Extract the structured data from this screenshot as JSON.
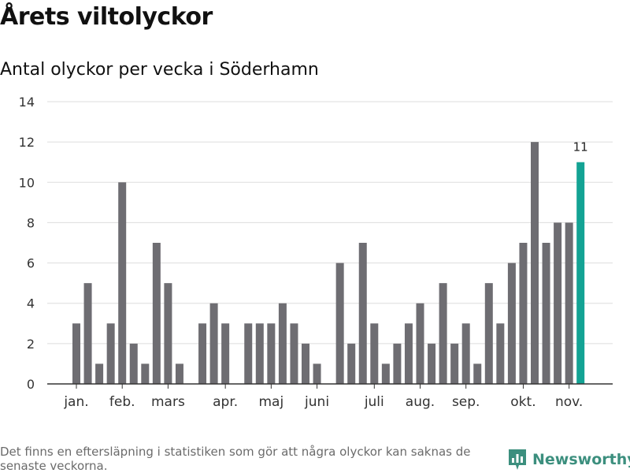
{
  "header": {
    "title": "Årets viltolyckor",
    "subtitle": "Antal olyckor per vecka i Söderhamn"
  },
  "footer": {
    "note": "Det finns en eftersläpning i statistiken som gör att några olyckor kan saknas de senaste veckorna.",
    "brand": "Newsworthy"
  },
  "colors": {
    "bar": "#6e6d72",
    "highlight": "#13a394",
    "grid": "#dddddd",
    "axis": "#333333",
    "brand": "#3c8f7e"
  },
  "chart_data": {
    "type": "bar",
    "title": "Antal olyckor per vecka i Söderhamn",
    "xlabel": "",
    "ylabel": "",
    "ylim": [
      0,
      14
    ],
    "yticks": [
      0,
      2,
      4,
      6,
      8,
      10,
      12,
      14
    ],
    "grid": true,
    "month_labels": [
      {
        "label": "jan.",
        "week": 3
      },
      {
        "label": "feb.",
        "week": 7
      },
      {
        "label": "mars",
        "week": 11
      },
      {
        "label": "apr.",
        "week": 16
      },
      {
        "label": "maj",
        "week": 20
      },
      {
        "label": "juni",
        "week": 24
      },
      {
        "label": "juli",
        "week": 29
      },
      {
        "label": "aug.",
        "week": 33
      },
      {
        "label": "sep.",
        "week": 37
      },
      {
        "label": "okt.",
        "week": 42
      },
      {
        "label": "nov.",
        "week": 46
      }
    ],
    "weeks": [
      1,
      2,
      3,
      4,
      5,
      6,
      7,
      8,
      9,
      10,
      11,
      12,
      13,
      14,
      15,
      16,
      17,
      18,
      19,
      20,
      21,
      22,
      23,
      24,
      25,
      26,
      27,
      28,
      29,
      30,
      31,
      32,
      33,
      34,
      35,
      36,
      37,
      38,
      39,
      40,
      41,
      42,
      43,
      44,
      45,
      46,
      47
    ],
    "values": [
      0,
      0,
      3,
      5,
      1,
      3,
      10,
      2,
      1,
      7,
      5,
      1,
      0,
      3,
      4,
      3,
      0,
      3,
      3,
      3,
      4,
      3,
      2,
      1,
      0,
      6,
      2,
      7,
      3,
      1,
      2,
      3,
      4,
      2,
      5,
      2,
      3,
      1,
      5,
      3,
      6,
      7,
      12,
      7,
      8,
      8,
      11
    ],
    "highlight_index": 46,
    "annotation": {
      "index": 46,
      "text": "11"
    }
  }
}
